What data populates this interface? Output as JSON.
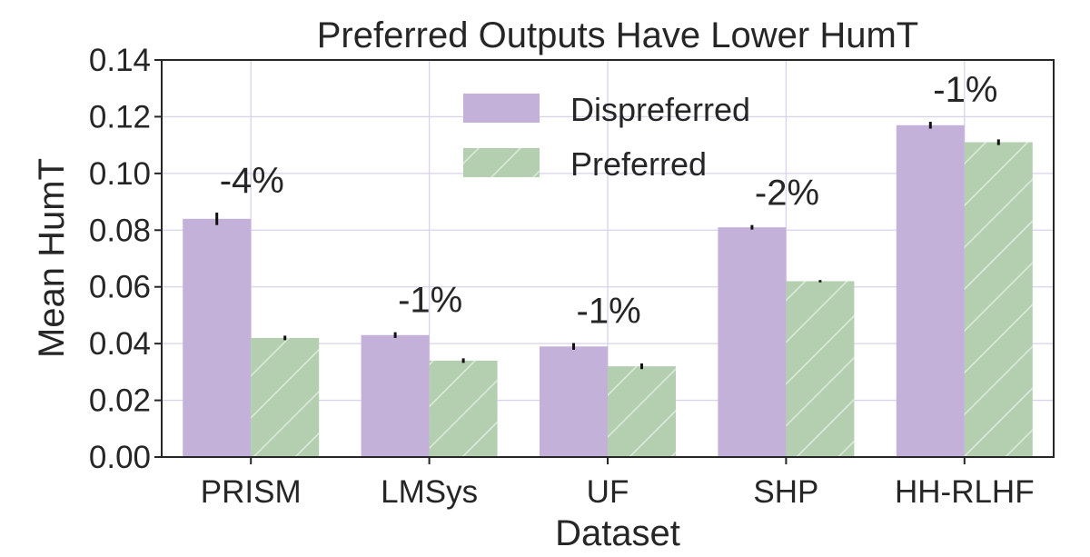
{
  "chart_data": {
    "type": "bar",
    "title": "Preferred Outputs Have Lower HumT",
    "xlabel": "Dataset",
    "ylabel": "Mean HumT",
    "categories": [
      "PRISM",
      "LMSys",
      "UF",
      "SHP",
      "HH-RLHF"
    ],
    "ylim": [
      0,
      0.14
    ],
    "yticks": [
      0.0,
      0.02,
      0.04,
      0.06,
      0.08,
      0.1,
      0.12,
      0.14
    ],
    "ytick_labels": [
      "0.00",
      "0.02",
      "0.04",
      "0.06",
      "0.08",
      "0.10",
      "0.12",
      "0.14"
    ],
    "series": [
      {
        "name": "Dispreferred",
        "color": "#c3b1da",
        "values": [
          0.084,
          0.043,
          0.039,
          0.081,
          0.117
        ],
        "error": [
          0.0022,
          0.001,
          0.0012,
          0.0008,
          0.0012
        ]
      },
      {
        "name": "Preferred",
        "color": "#b3cfb0",
        "hatch": "diagonal",
        "values": [
          0.042,
          0.034,
          0.032,
          0.062,
          0.111
        ],
        "error": [
          0.0008,
          0.0008,
          0.001,
          0.0004,
          0.001
        ]
      }
    ],
    "annotations": [
      "-4%",
      "-1%",
      "-1%",
      "-2%",
      "-1%"
    ],
    "legend": {
      "position": "top-center"
    },
    "grid": true
  }
}
